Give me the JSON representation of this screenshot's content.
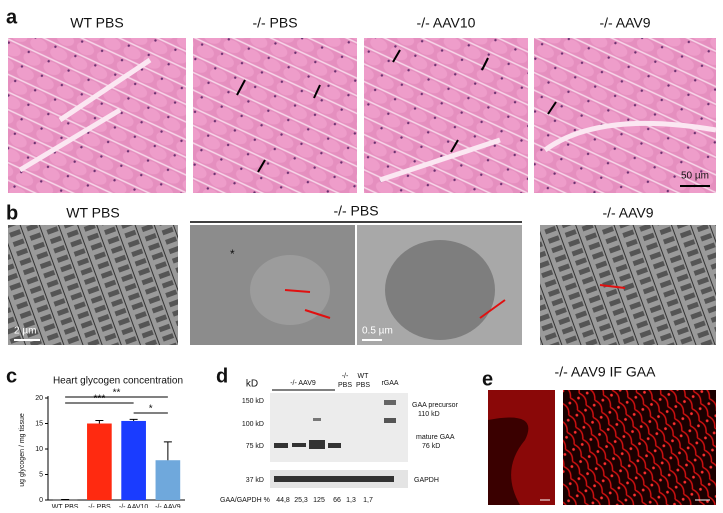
{
  "panel_a": {
    "label": "a",
    "titles": [
      "WT PBS",
      "-/- PBS",
      "-/- AAV10",
      "-/- AAV9"
    ],
    "scale_bar": "50 µm"
  },
  "panel_b": {
    "label": "b",
    "titles": [
      "WT PBS",
      "-/- PBS",
      "-/- AAV9"
    ],
    "scale_bars": [
      "2 µm",
      "0.5 µm"
    ]
  },
  "chart_data": {
    "panel_label": "c",
    "type": "bar",
    "title": "Heart glycogen concentration",
    "y_label": "ug glycogen / mg tissue",
    "categories": [
      "WT PBS",
      "-/- PBS",
      "-/- AAV10",
      "-/- AAV9"
    ],
    "values": [
      0.1,
      15,
      15.5,
      7.8
    ],
    "errors": [
      0,
      0.6,
      0.3,
      3.6
    ],
    "colors": [
      "#222222",
      "#ff2a10",
      "#1a3cff",
      "#6fa8dc"
    ],
    "ylim": [
      0,
      20
    ],
    "yticks": [
      0,
      5,
      10,
      15,
      20
    ],
    "significance": [
      "***",
      "**",
      "*"
    ]
  },
  "panel_d": {
    "label": "d",
    "kd_header": "kD",
    "markers": [
      "150 kD",
      "100 kD",
      "75 kD",
      "37 kD"
    ],
    "groups": [
      "-/- AAV9",
      "-/-",
      "PBS",
      "WT",
      "PBS",
      "rGAA"
    ],
    "bands": [
      "GAA precursor",
      "110 kD",
      "mature GAA",
      "76 kD",
      "GAPDH"
    ],
    "ratio_label": "GAA/GAPDH %",
    "ratios": [
      "44,8",
      "25,3",
      "125",
      "66",
      "1,3",
      "1,7"
    ]
  },
  "panel_e": {
    "label": "e",
    "title": "-/- AAV9 IF GAA"
  }
}
